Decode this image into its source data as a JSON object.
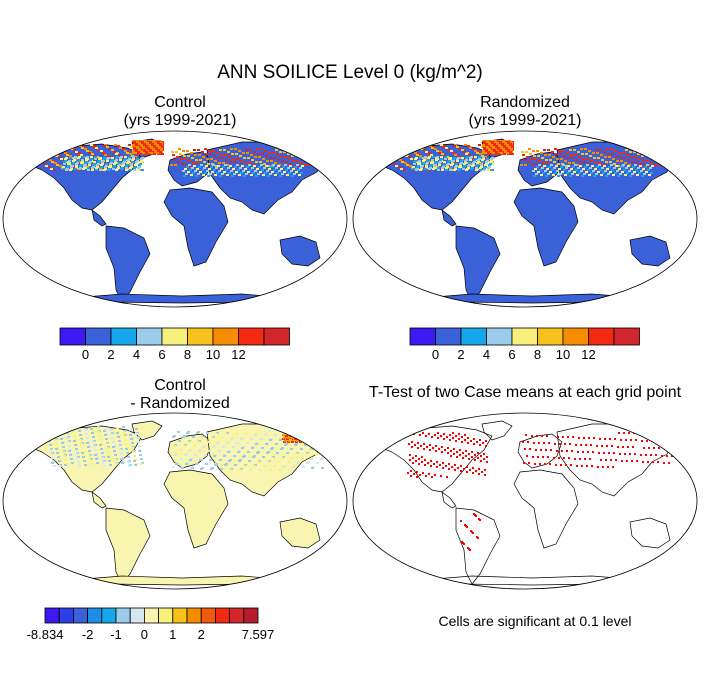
{
  "title": "ANN SOILICE Level 0 (kg/m^2)",
  "panels": [
    {
      "title_line1": "Control",
      "title_line2": "(yrs 1999-2021)"
    },
    {
      "title_line1": "Randomized",
      "title_line2": "(yrs 1999-2021)"
    },
    {
      "title_line1": "Control",
      "title_line2": "- Randomized"
    },
    {
      "title_line1": "T-Test of two Case means at each grid point",
      "title_line2": ""
    }
  ],
  "colorbar_main": {
    "colors": [
      "#3b19f0",
      "#3b61d8",
      "#15a7ea",
      "#9bcce9",
      "#f7f07a",
      "#f8c21c",
      "#f68d00",
      "#f32a11",
      "#d1262b"
    ],
    "tick_labels": [
      "0",
      "2",
      "4",
      "6",
      "8",
      "10",
      "12"
    ]
  },
  "colorbar_diff": {
    "colors": [
      "#3b19f0",
      "#2d3ee6",
      "#3b61d8",
      "#1e8de8",
      "#15a7ea",
      "#9bcce9",
      "#d3e6f2",
      "#f8f5b0",
      "#f7f07a",
      "#f8c21c",
      "#f68d00",
      "#f05a0a",
      "#f32a11",
      "#d1262b",
      "#b51d2c"
    ],
    "tick_labels": [
      "-8.834",
      "-2",
      "-1",
      "0",
      "1",
      "2",
      "7.597"
    ]
  },
  "significance_note": "Cells are significant at 0.1 level"
}
